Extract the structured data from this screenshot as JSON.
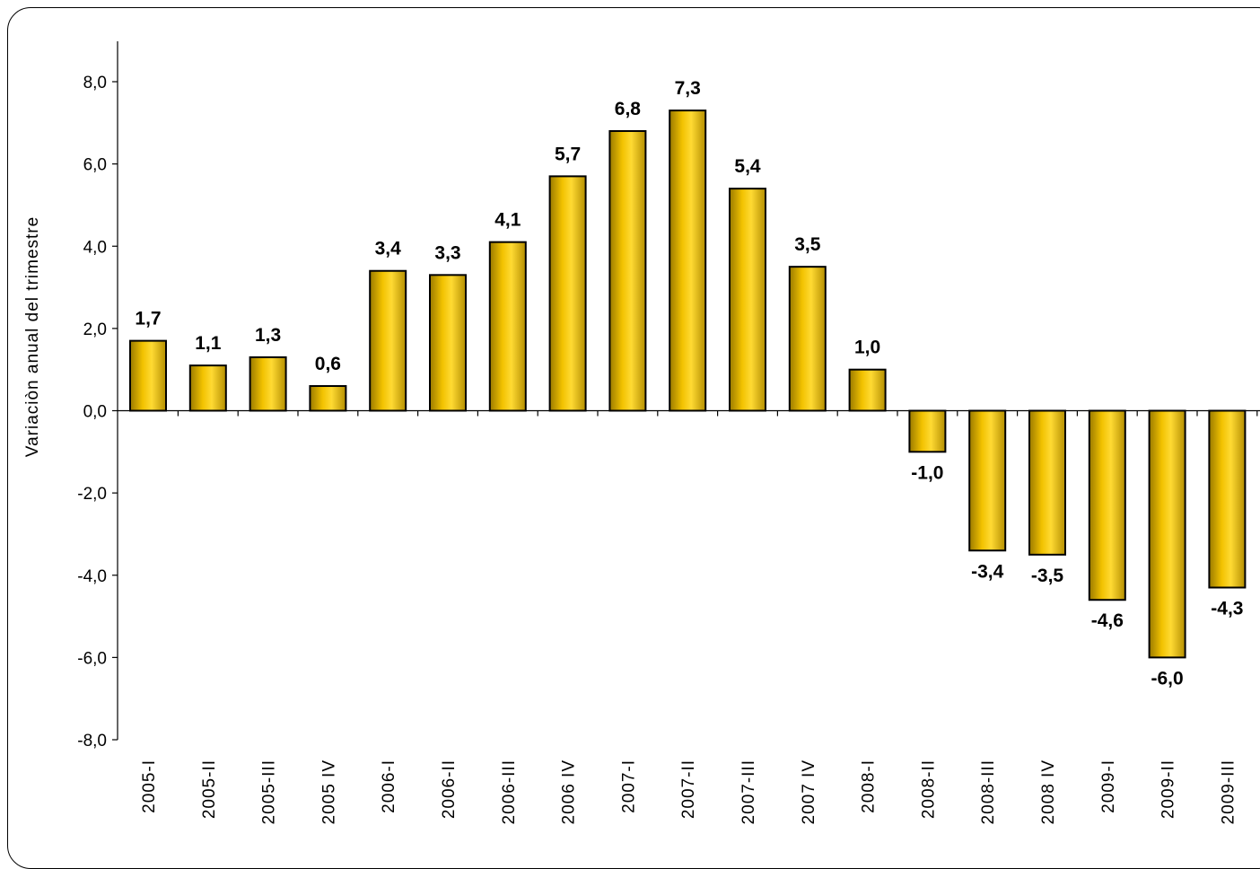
{
  "chart_data": {
    "type": "bar",
    "title": "",
    "xlabel": "",
    "ylabel": "Variaciòn anual del trimestre",
    "ylim": [
      -8,
      8
    ],
    "yticks": [
      8,
      6,
      4,
      2,
      0,
      -2,
      -4,
      -6,
      -8
    ],
    "ytick_labels": [
      "8,0",
      "6,0",
      "4,0",
      "2,0",
      "0,0",
      "-2,0",
      "-4,0",
      "-6,0",
      "-8,0"
    ],
    "categories": [
      "2005-I",
      "2005-II",
      "2005-III",
      "2005 IV",
      "2006-I",
      "2006-II",
      "2006-III",
      "2006 IV",
      "2007-I",
      "2007-II",
      "2007-III",
      "2007 IV",
      "2008-I",
      "2008-II",
      "2008-III",
      "2008 IV",
      "2009-I",
      "2009-II",
      "2009-III"
    ],
    "values": [
      1.7,
      1.1,
      1.3,
      0.6,
      3.4,
      3.3,
      4.1,
      5.7,
      6.8,
      7.3,
      5.4,
      3.5,
      1.0,
      -1.0,
      -3.4,
      -3.5,
      -4.6,
      -6.0,
      -4.3
    ],
    "value_labels": [
      "1,7",
      "1,1",
      "1,3",
      "0,6",
      "3,4",
      "3,3",
      "4,1",
      "5,7",
      "6,8",
      "7,3",
      "5,4",
      "3,5",
      "1,0",
      "-1,0",
      "-3,4",
      "-3,5",
      "-4,6",
      "-6,0",
      "-4,3"
    ],
    "bar_color": "#F2C200",
    "bar_edge_color": "#000000",
    "grid": false,
    "legend": "none"
  }
}
